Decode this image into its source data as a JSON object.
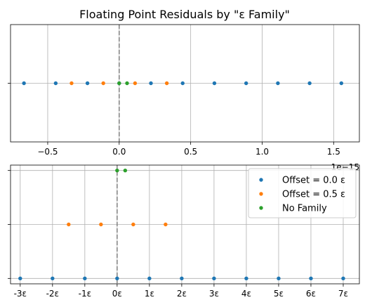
{
  "chart_data": [
    {
      "type": "scatter",
      "title": "Floating Point Residuals by \"ε Family\"",
      "xlim": [
        -0.76,
        1.68
      ],
      "x_offset_label": "1e−15",
      "x_ticks": [
        -0.5,
        0.0,
        0.5,
        1.0,
        1.5
      ],
      "x_tick_labels": [
        "−0.5",
        "0.0",
        "0.5",
        "1.0",
        "1.5"
      ],
      "y_ticks": [
        0
      ],
      "grid": true,
      "vline_x": 0,
      "series": [
        {
          "name": "Offset = 0.0 ε",
          "color": "#1f77b4",
          "x": [
            -0.666,
            -0.444,
            -0.222,
            0.0,
            0.222,
            0.444,
            0.666,
            0.888,
            1.11,
            1.332,
            1.554
          ],
          "y": [
            0,
            0,
            0,
            0,
            0,
            0,
            0,
            0,
            0,
            0,
            0
          ]
        },
        {
          "name": "Offset = 0.5 ε",
          "color": "#ff7f0e",
          "x": [
            -0.333,
            -0.111,
            0.111,
            0.333
          ],
          "y": [
            0,
            0,
            0,
            0
          ]
        },
        {
          "name": "No Family",
          "color": "#2ca02c",
          "x": [
            0.0,
            0.055
          ],
          "y": [
            0,
            0
          ]
        }
      ]
    },
    {
      "type": "scatter",
      "xlim": [
        -3.3,
        7.5
      ],
      "x_ticks": [
        -3,
        -2,
        -1,
        0,
        1,
        2,
        3,
        4,
        5,
        6,
        7
      ],
      "x_tick_labels": [
        "-3ε",
        "-2ε",
        "-1ε",
        "0ε",
        "1ε",
        "2ε",
        "3ε",
        "4ε",
        "5ε",
        "6ε",
        "7ε"
      ],
      "ylim": [
        -0.1,
        2.1
      ],
      "y_ticks": [
        0,
        1,
        2
      ],
      "grid": true,
      "vline_x": 0,
      "legend_position": "top-right",
      "series": [
        {
          "name": "Offset = 0.0 ε",
          "color": "#1f77b4",
          "x": [
            -3,
            -2,
            -1,
            0,
            1,
            2,
            3,
            4,
            5,
            6,
            7
          ],
          "y": [
            0,
            0,
            0,
            0,
            0,
            0,
            0,
            0,
            0,
            0,
            0
          ]
        },
        {
          "name": "Offset = 0.5 ε",
          "color": "#ff7f0e",
          "x": [
            -1.5,
            -0.5,
            0.5,
            1.5
          ],
          "y": [
            1,
            1,
            1,
            1
          ]
        },
        {
          "name": "No Family",
          "color": "#2ca02c",
          "x": [
            0,
            0.25
          ],
          "y": [
            2,
            2
          ]
        }
      ]
    }
  ]
}
